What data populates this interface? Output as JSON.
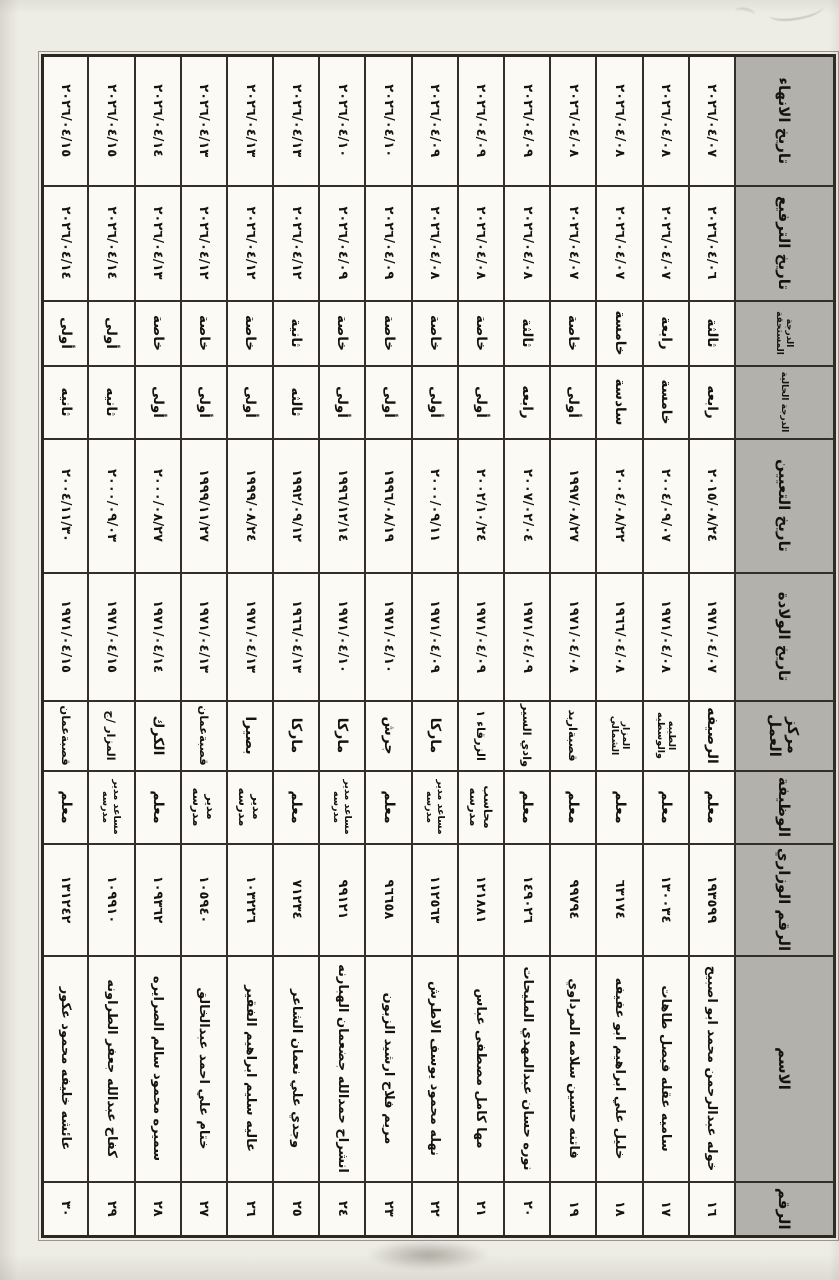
{
  "colors": {
    "header_bg": "#b2b1ac",
    "cell_bg": "#fbfaf5",
    "paper": "#edece5",
    "ink": "#17130e",
    "grid_line": "#332f28"
  },
  "table": {
    "columns": [
      {
        "key": "num",
        "label": "الرقم"
      },
      {
        "key": "name",
        "label": "الاسم"
      },
      {
        "key": "ministry_no",
        "label": "الرقم الوزاري"
      },
      {
        "key": "job",
        "label": "الوظيفة"
      },
      {
        "key": "center",
        "label": "مركز العمل"
      },
      {
        "key": "birth_date",
        "label": "تاريخ الولادة"
      },
      {
        "key": "hire_date",
        "label": "تاريخ التعيين"
      },
      {
        "key": "current_grade",
        "label": "الدرجة الحالية"
      },
      {
        "key": "due_grade",
        "label": "الدرجة المستحقة"
      },
      {
        "key": "promotion_date",
        "label": "تاريخ الترفيع"
      },
      {
        "key": "end_date",
        "label": "تاريخ الانهاء"
      }
    ],
    "rows": [
      {
        "num": "١٦",
        "name": "خوله عبدالرحمن محمد ابو اصبيح",
        "ministry_no": "١٩٣٥٩٩",
        "job": "معلم",
        "center": "الرصيفه",
        "birth_date": "١٩٧١/٠٤/٠٧",
        "hire_date": "٢٠١٥/٠٨/٢٤",
        "current_grade": "رابعه",
        "due_grade": "ثالثة",
        "promotion_date": "٢٠٢٦/٠٤/٠٦",
        "end_date": "٢٠٢٦/٠٤/٠٧"
      },
      {
        "num": "١٧",
        "name": "ساميه عقله فيصل طاهات",
        "ministry_no": "١٣٠٠٣٤",
        "job": "معلم",
        "center": "الطيبه والوسطيه",
        "birth_date": "١٩٧١/٠٤/٠٨",
        "hire_date": "٢٠٠٤/٠٩/٠٧",
        "current_grade": "خامسة",
        "due_grade": "رابعة",
        "promotion_date": "٢٠٢٦/٠٤/٠٧",
        "end_date": "٢٠٢٦/٠٤/٠٨"
      },
      {
        "num": "١٨",
        "name": "خليل علي ابراهيم ابو عفيفه",
        "ministry_no": "٦٣١٧٤",
        "job": "معلم",
        "center": "المزار الشمالي",
        "birth_date": "١٩٦٦/٠٤/٠٨",
        "hire_date": "٢٠٠٤/٠٨/٢٢",
        "current_grade": "سادسة",
        "due_grade": "خامسة",
        "promotion_date": "٢٠٢٦/٠٤/٠٧",
        "end_date": "٢٠٢٦/٠٤/٠٨"
      },
      {
        "num": "١٩",
        "name": "فاتنه حسين سلامه المرداوي",
        "ministry_no": "٩٩٧٩٤",
        "job": "معلم",
        "center": "قصبةاربد",
        "birth_date": "١٩٧١/٠٤/٠٨",
        "hire_date": "١٩٩٧/٠٨/٢٧",
        "current_grade": "أولى",
        "due_grade": "خاصة",
        "promotion_date": "٢٠٢٦/٠٤/٠٧",
        "end_date": "٢٠٢٦/٠٤/٠٨"
      },
      {
        "num": "٢٠",
        "name": "نوره حسان عبدالمهدي المليحات",
        "ministry_no": "١٤٩٠٢٦",
        "job": "معلم",
        "center": "وادي السير",
        "birth_date": "١٩٧١/٠٤/٠٩",
        "hire_date": "٢٠٠٧/٠٢/٠٤",
        "current_grade": "رابعه",
        "due_grade": "ثالثة",
        "promotion_date": "٢٠٢٦/٠٤/٠٨",
        "end_date": "٢٠٢٦/٠٤/٠٩"
      },
      {
        "num": "٢١",
        "name": "مها كامل مصطفى عباس",
        "ministry_no": "١٢١٨٨١",
        "job": "محاسب مدرسه",
        "center": "الزرقاء ١",
        "birth_date": "١٩٧١/٠٤/٠٩",
        "hire_date": "٢٠٠٢/١٠/٢٤",
        "current_grade": "أولى",
        "due_grade": "خاصة",
        "promotion_date": "٢٠٢٦/٠٤/٠٨",
        "end_date": "٢٠٢٦/٠٤/٠٩"
      },
      {
        "num": "٢٢",
        "name": "نهله محمود يوسف الاطرش",
        "ministry_no": "١١٢٥٦٣",
        "job": "مساعد مدير مدرسه",
        "center": "ماركا",
        "birth_date": "١٩٧١/٠٤/٠٩",
        "hire_date": "٢٠٠٠/٠٩/١١",
        "current_grade": "أولى",
        "due_grade": "خاصة",
        "promotion_date": "٢٠٢٦/٠٤/٠٨",
        "end_date": "٢٠٢٦/٠٤/٠٩"
      },
      {
        "num": "٢٣",
        "name": "مريم فلاح ارشيد الزبون",
        "ministry_no": "٩٦٦٥٨",
        "job": "معلم",
        "center": "جرش",
        "birth_date": "١٩٧١/٠٤/١٠",
        "hire_date": "١٩٩٦/٠٨/١٩",
        "current_grade": "أولى",
        "due_grade": "خاصة",
        "promotion_date": "٢٠٢٦/٠٤/٠٩",
        "end_date": "٢٠٢٦/٠٤/١٠"
      },
      {
        "num": "٢٤",
        "name": "انشراح حمدالله جضعمان الهبارنه",
        "ministry_no": "٩٩١٢١",
        "job": "مساعد مدير مدرسه",
        "center": "ماركا",
        "birth_date": "١٩٧١/٠٤/١٠",
        "hire_date": "١٩٩٦/١٢/١٤",
        "current_grade": "أولى",
        "due_grade": "خاصة",
        "promotion_date": "٢٠٢٦/٠٤/٠٩",
        "end_date": "٢٠٢٦/٠٤/١٠"
      },
      {
        "num": "٢٥",
        "name": "وجدي علي نعمان الشاعر",
        "ministry_no": "٧١٢٣٤",
        "job": "معلم",
        "center": "ماركا",
        "birth_date": "١٩٦٦/٠٤/١٣",
        "hire_date": "١٩٩٢/٠٩/١٢",
        "current_grade": "ثالثه",
        "due_grade": "ثانية",
        "promotion_date": "٢٠٢٦/٠٤/١٢",
        "end_date": "٢٠٢٦/٠٤/١٣"
      },
      {
        "num": "٢٦",
        "name": "عاليه سليم ابراهيم الفقير",
        "ministry_no": "١٠٣٢٢٦",
        "job": "مدير مدرسه",
        "center": "بصيرا",
        "birth_date": "١٩٧١/٠٤/١٣",
        "hire_date": "١٩٩٩/٠٨/٢٤",
        "current_grade": "أولى",
        "due_grade": "خاصة",
        "promotion_date": "٢٠٢٦/٠٤/١٢",
        "end_date": "٢٠٢٦/٠٤/١٣"
      },
      {
        "num": "٢٧",
        "name": "ختام علي احمد عبدالخالق",
        "ministry_no": "١٠٥٩٤٠",
        "job": "مدير مدرسه",
        "center": "قصبةعمان",
        "birth_date": "١٩٧١/٠٤/١٣",
        "hire_date": "١٩٩٩/١١/٢٧",
        "current_grade": "أولى",
        "due_grade": "خاصة",
        "promotion_date": "٢٠٢٦/٠٤/١٢",
        "end_date": "٢٠٢٦/٠٤/١٣"
      },
      {
        "num": "٢٨",
        "name": "سميره محمود سالم الصرايره",
        "ministry_no": "١٠٩٣٦٢",
        "job": "معلم",
        "center": "الكرك",
        "birth_date": "١٩٧١/٠٤/١٤",
        "hire_date": "٢٠٠٠/٠٨/٢٧",
        "current_grade": "أولى",
        "due_grade": "خاصة",
        "promotion_date": "٢٠٢٦/٠٤/١٣",
        "end_date": "٢٠٢٦/٠٤/١٤"
      },
      {
        "num": "٢٩",
        "name": "كفاح عبدالله جعفر الطراونه",
        "ministry_no": "١٠٩٩١٠",
        "job": "مساعد مدير مدرسه",
        "center": "المزار /ج",
        "birth_date": "١٩٧١/٠٤/١٥",
        "hire_date": "٢٠٠٠/٠٩/٠٣",
        "current_grade": "ثانيه",
        "due_grade": "أولى",
        "promotion_date": "٢٠٢٦/٠٤/١٤",
        "end_date": "٢٠٢٦/٠٤/١٥"
      },
      {
        "num": "٣٠",
        "name": "عائشه خليفه محمود عكور",
        "ministry_no": "١٣١٢٤٢",
        "job": "معلم",
        "center": "قصبةعمان",
        "birth_date": "١٩٧١/٠٤/١٥",
        "hire_date": "٢٠٠٤/١١/٣٠",
        "current_grade": "ثانيه",
        "due_grade": "أولى",
        "promotion_date": "٢٠٢٦/٠٤/١٤",
        "end_date": "٢٠٢٦/٠٤/١٥"
      }
    ]
  }
}
